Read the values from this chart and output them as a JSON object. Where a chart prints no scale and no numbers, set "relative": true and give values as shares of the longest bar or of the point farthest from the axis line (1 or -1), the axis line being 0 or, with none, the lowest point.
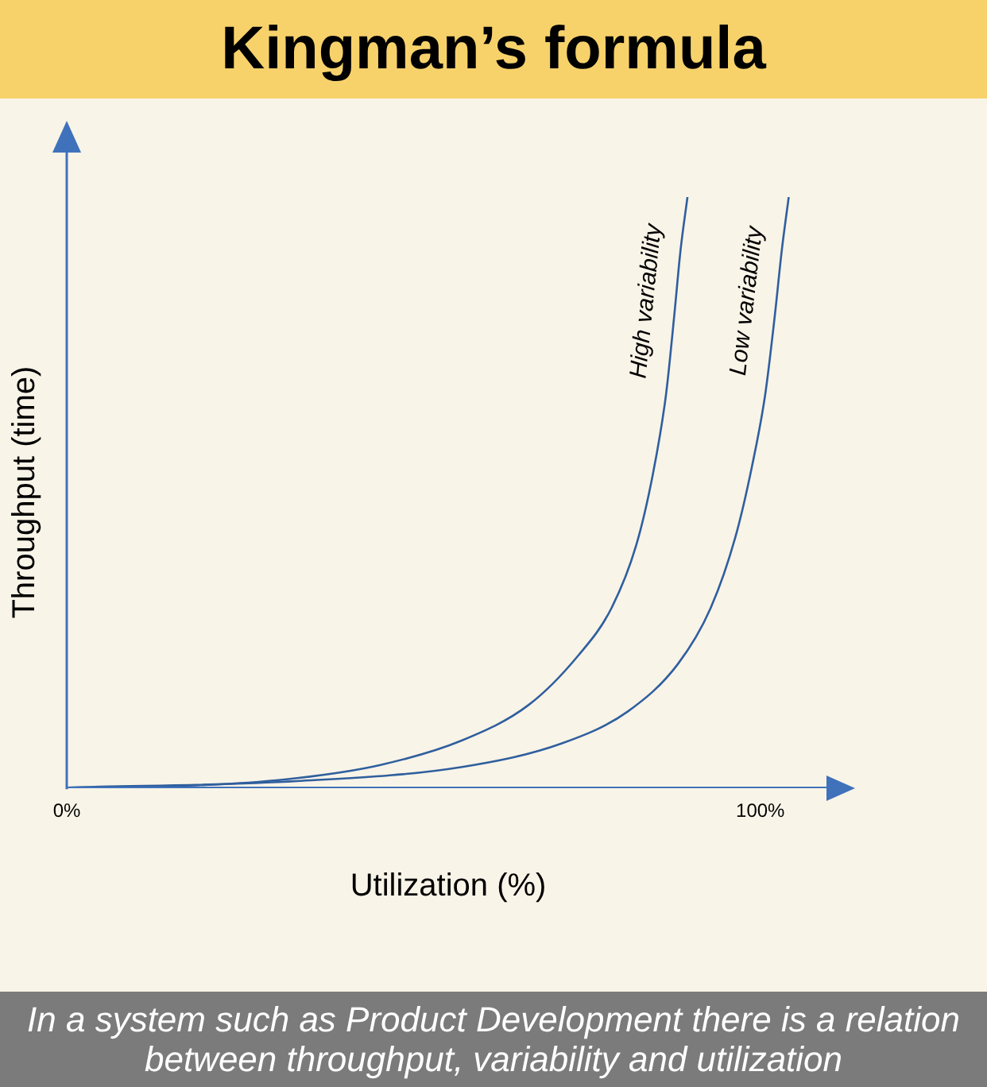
{
  "chart_data": {
    "type": "line",
    "title": "Kingman’s formula",
    "xlabel": "Utilization (%)",
    "ylabel": "Throughput (time)",
    "relative": true,
    "xlim": [
      0,
      110
    ],
    "xticks": [
      {
        "value": 0,
        "label": "0%"
      },
      {
        "value": 100,
        "label": "100%"
      }
    ],
    "grid": false,
    "legend": false,
    "marker": "none",
    "line_style": "solid",
    "series": [
      {
        "name": "High variability",
        "color": "#2f5f9e",
        "x": [
          0,
          21.2,
          33.2,
          45.1,
          57.0,
          66.6,
          73.7,
          78.5,
          82.1,
          84.5,
          86.4,
          87.6,
          88.5,
          89.5
        ],
        "values": [
          0,
          0.005,
          0.016,
          0.038,
          0.08,
          0.14,
          0.223,
          0.303,
          0.41,
          0.53,
          0.665,
          0.8,
          0.91,
          1.0
        ]
      },
      {
        "name": "Low variability",
        "color": "#2f5f9e",
        "x": [
          0,
          33.2,
          57.0,
          71.4,
          80.9,
          88.1,
          92.8,
          96.4,
          98.8,
          100.7,
          102.1,
          103.1,
          104.1
        ],
        "values": [
          0,
          0.011,
          0.035,
          0.075,
          0.129,
          0.209,
          0.303,
          0.424,
          0.544,
          0.665,
          0.8,
          0.91,
          1.0
        ]
      }
    ],
    "annotations": [
      "In a system such as Product Development there is a relation between throughput, variability and utilization"
    ]
  }
}
